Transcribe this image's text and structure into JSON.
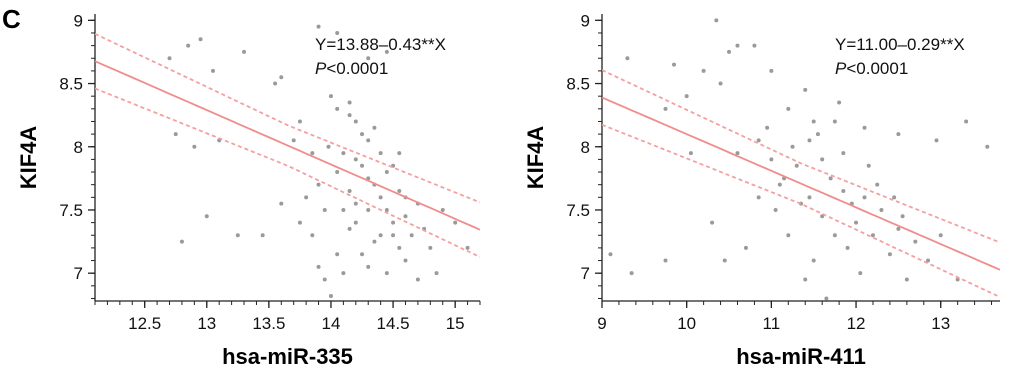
{
  "panel_label": "C",
  "chart_data": [
    {
      "type": "scatter",
      "xlabel": "hsa-miR-335",
      "ylabel": "KIF4A",
      "xlim": [
        12.1,
        15.2
      ],
      "ylim": [
        6.78,
        9.05
      ],
      "xticks": [
        "12.5",
        "13",
        "13.5",
        "14",
        "14.5",
        "15"
      ],
      "xtick_values": [
        12.5,
        13,
        13.5,
        14,
        14.5,
        15
      ],
      "yticks": [
        "7",
        "7.5",
        "8",
        "8.5",
        "9"
      ],
      "ytick_values": [
        7,
        7.5,
        8,
        8.5,
        9
      ],
      "annotation": {
        "equation": "Y=13.88–0.43**X",
        "p_italic": "P",
        "p_rest": "<0.0001"
      },
      "fit": {
        "intercept": 13.88,
        "slope": -0.43
      },
      "ci_band_offset": 0.16,
      "colors": {
        "points": "#9a9a9a",
        "fit": "#f08c8c",
        "ci": "#f4a0a0"
      },
      "points": [
        [
          12.85,
          8.8
        ],
        [
          12.95,
          8.85
        ],
        [
          13.3,
          8.75
        ],
        [
          12.7,
          8.7
        ],
        [
          13.05,
          8.6
        ],
        [
          13.55,
          8.5
        ],
        [
          13.6,
          8.55
        ],
        [
          13.9,
          8.95
        ],
        [
          14.05,
          8.9
        ],
        [
          14.3,
          8.7
        ],
        [
          14.45,
          8.75
        ],
        [
          12.75,
          8.1
        ],
        [
          12.9,
          8.0
        ],
        [
          13.1,
          8.05
        ],
        [
          13.25,
          7.3
        ],
        [
          12.8,
          7.25
        ],
        [
          13.0,
          7.45
        ],
        [
          13.45,
          7.3
        ],
        [
          13.6,
          7.55
        ],
        [
          13.7,
          8.05
        ],
        [
          13.75,
          8.2
        ],
        [
          13.8,
          7.6
        ],
        [
          13.85,
          7.3
        ],
        [
          13.9,
          7.05
        ],
        [
          13.95,
          6.95
        ],
        [
          13.98,
          8.0
        ],
        [
          14.0,
          8.4
        ],
        [
          14.05,
          8.3
        ],
        [
          14.05,
          7.8
        ],
        [
          14.1,
          7.5
        ],
        [
          14.1,
          7.0
        ],
        [
          14.15,
          8.25
        ],
        [
          14.15,
          7.65
        ],
        [
          14.2,
          8.2
        ],
        [
          14.2,
          7.9
        ],
        [
          14.2,
          7.4
        ],
        [
          14.25,
          7.15
        ],
        [
          14.25,
          8.1
        ],
        [
          14.3,
          7.75
        ],
        [
          14.3,
          7.5
        ],
        [
          14.35,
          8.15
        ],
        [
          14.35,
          7.25
        ],
        [
          14.4,
          7.95
        ],
        [
          14.4,
          7.6
        ],
        [
          14.45,
          7.0
        ],
        [
          14.5,
          7.85
        ],
        [
          14.5,
          7.4
        ],
        [
          14.55,
          7.2
        ],
        [
          14.55,
          7.65
        ],
        [
          14.6,
          7.1
        ],
        [
          14.6,
          7.45
        ],
        [
          14.65,
          7.3
        ],
        [
          14.7,
          6.95
        ],
        [
          14.7,
          7.55
        ],
        [
          14.75,
          7.35
        ],
        [
          14.8,
          7.2
        ],
        [
          14.85,
          7.0
        ],
        [
          14.9,
          7.5
        ],
        [
          15.0,
          7.4
        ],
        [
          15.1,
          7.2
        ],
        [
          14.0,
          6.82
        ],
        [
          14.1,
          7.95
        ],
        [
          14.15,
          8.35
        ],
        [
          14.25,
          7.85
        ],
        [
          14.3,
          8.05
        ],
        [
          14.35,
          7.7
        ],
        [
          14.45,
          7.5
        ],
        [
          14.5,
          7.3
        ],
        [
          13.9,
          7.7
        ],
        [
          13.95,
          7.5
        ],
        [
          13.85,
          7.95
        ],
        [
          13.75,
          7.4
        ],
        [
          14.05,
          7.15
        ],
        [
          14.15,
          7.35
        ],
        [
          14.2,
          7.55
        ],
        [
          14.3,
          7.05
        ],
        [
          14.4,
          7.3
        ],
        [
          14.45,
          7.8
        ],
        [
          14.55,
          7.95
        ],
        [
          14.6,
          7.6
        ]
      ]
    },
    {
      "type": "scatter",
      "xlabel": "hsa-miR-411",
      "ylabel": "KIF4A",
      "xlim": [
        9.0,
        13.7
      ],
      "ylim": [
        6.78,
        9.05
      ],
      "xticks": [
        "9",
        "10",
        "11",
        "12",
        "13"
      ],
      "xtick_values": [
        9,
        10,
        11,
        12,
        13
      ],
      "yticks": [
        "7",
        "7.5",
        "8",
        "8.5",
        "9"
      ],
      "ytick_values": [
        7,
        7.5,
        8,
        8.5,
        9
      ],
      "annotation": {
        "equation": "Y=11.00–0.29**X",
        "p_italic": "P",
        "p_rest": "<0.0001"
      },
      "fit": {
        "intercept": 11.0,
        "slope": -0.29
      },
      "ci_band_offset": 0.16,
      "colors": {
        "points": "#9a9a9a",
        "fit": "#f08c8c",
        "ci": "#f4a0a0"
      },
      "points": [
        [
          10.35,
          9.0
        ],
        [
          10.6,
          8.8
        ],
        [
          10.5,
          8.75
        ],
        [
          10.8,
          8.8
        ],
        [
          9.85,
          8.65
        ],
        [
          10.2,
          8.6
        ],
        [
          9.3,
          8.7
        ],
        [
          9.75,
          8.3
        ],
        [
          10.0,
          8.4
        ],
        [
          10.4,
          8.5
        ],
        [
          11.0,
          8.6
        ],
        [
          11.2,
          8.3
        ],
        [
          11.4,
          8.45
        ],
        [
          11.5,
          8.2
        ],
        [
          11.8,
          8.35
        ],
        [
          12.1,
          8.15
        ],
        [
          12.5,
          8.1
        ],
        [
          12.95,
          8.05
        ],
        [
          13.3,
          8.2
        ],
        [
          13.55,
          8.0
        ],
        [
          9.1,
          7.15
        ],
        [
          9.35,
          7.0
        ],
        [
          9.75,
          7.1
        ],
        [
          10.05,
          7.95
        ],
        [
          10.3,
          7.4
        ],
        [
          10.45,
          7.1
        ],
        [
          10.7,
          7.2
        ],
        [
          10.85,
          7.6
        ],
        [
          11.0,
          7.9
        ],
        [
          11.05,
          7.5
        ],
        [
          11.15,
          7.75
        ],
        [
          11.2,
          7.3
        ],
        [
          11.3,
          7.85
        ],
        [
          11.35,
          7.55
        ],
        [
          11.45,
          7.6
        ],
        [
          11.5,
          7.1
        ],
        [
          11.6,
          7.9
        ],
        [
          11.6,
          7.45
        ],
        [
          11.7,
          7.75
        ],
        [
          11.75,
          7.3
        ],
        [
          11.85,
          7.65
        ],
        [
          11.9,
          7.2
        ],
        [
          11.95,
          7.55
        ],
        [
          12.0,
          7.4
        ],
        [
          12.05,
          7.0
        ],
        [
          12.1,
          7.6
        ],
        [
          12.2,
          7.3
        ],
        [
          12.3,
          7.5
        ],
        [
          12.4,
          7.15
        ],
        [
          12.5,
          7.35
        ],
        [
          12.6,
          6.95
        ],
        [
          12.7,
          7.25
        ],
        [
          12.85,
          7.1
        ],
        [
          13.0,
          7.3
        ],
        [
          13.2,
          6.95
        ],
        [
          11.25,
          8.0
        ],
        [
          11.55,
          8.1
        ],
        [
          11.85,
          7.95
        ],
        [
          12.15,
          7.85
        ],
        [
          10.95,
          8.15
        ],
        [
          10.6,
          7.95
        ],
        [
          10.85,
          8.05
        ],
        [
          11.1,
          7.7
        ],
        [
          11.4,
          6.95
        ],
        [
          11.65,
          6.8
        ],
        [
          11.45,
          8.05
        ],
        [
          11.75,
          8.2
        ],
        [
          12.25,
          7.7
        ],
        [
          12.45,
          7.6
        ],
        [
          12.55,
          7.45
        ]
      ]
    }
  ]
}
